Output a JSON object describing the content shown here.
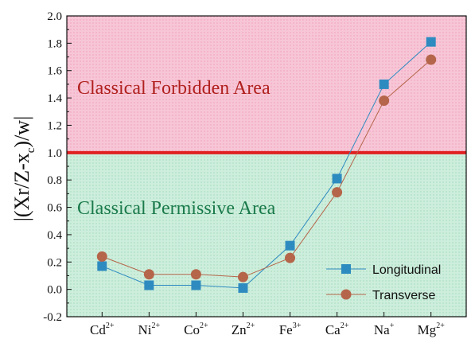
{
  "chart_data": {
    "type": "line",
    "title": "",
    "xlabel": "",
    "ylabel": "|(Xr/Z-x_c)/w|",
    "ylim": [
      -0.2,
      2.0
    ],
    "yticks": [
      "-0.2",
      "0.0",
      "0.2",
      "0.4",
      "0.6",
      "0.8",
      "1.0",
      "1.2",
      "1.4",
      "1.6",
      "1.8",
      "2.0"
    ],
    "categories": [
      {
        "base": "Cd",
        "sup": "2+"
      },
      {
        "base": "Ni",
        "sup": "2+"
      },
      {
        "base": "Co",
        "sup": "2+"
      },
      {
        "base": "Zn",
        "sup": "2+"
      },
      {
        "base": "Fe",
        "sup": "3+"
      },
      {
        "base": "Ca",
        "sup": "2+"
      },
      {
        "base": "Na",
        "sup": "+"
      },
      {
        "base": "Mg",
        "sup": "2+"
      }
    ],
    "series": [
      {
        "name": "Longitudinal",
        "marker": "square",
        "color": "#2e8bc0",
        "values": [
          0.17,
          0.03,
          0.03,
          0.01,
          0.32,
          0.81,
          1.5,
          1.81
        ]
      },
      {
        "name": "Transverse",
        "marker": "circle",
        "color": "#b5654a",
        "values": [
          0.24,
          0.11,
          0.11,
          0.09,
          0.23,
          0.71,
          1.38,
          1.68
        ]
      }
    ],
    "threshold": {
      "value": 1.0,
      "color": "#e02020"
    },
    "regions": [
      {
        "label": "Classical Forbidden Area",
        "from": 1.0,
        "to": 2.0,
        "color": "#f8c8d8",
        "text_color": "#b0201e"
      },
      {
        "label": "Classical Permissive Area",
        "from": -0.2,
        "to": 1.0,
        "color": "#cfeedd",
        "text_color": "#1a7a4a"
      }
    ],
    "legend_position": "bottom-right",
    "grid": false
  }
}
